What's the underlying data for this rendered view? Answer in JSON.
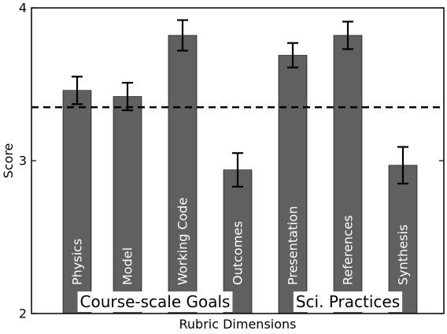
{
  "chart_data": {
    "type": "bar",
    "categories": [
      "Physics",
      "Model",
      "Working Code",
      "Outcomes",
      "Presentation",
      "References",
      "Synthesis"
    ],
    "values": [
      3.46,
      3.42,
      3.82,
      2.94,
      3.69,
      3.82,
      2.97
    ],
    "errors": [
      0.09,
      0.09,
      0.1,
      0.11,
      0.08,
      0.09,
      0.12
    ],
    "reference_line": 3.35,
    "xlabel": "Rubric Dimensions",
    "ylabel": "Score",
    "ylim": [
      2,
      4
    ],
    "yticks": [
      "2",
      "3",
      "4"
    ],
    "group_labels": [
      "Course-scale Goals",
      "Sci. Practices"
    ],
    "grid": false,
    "bar_color": "#606060",
    "error_color": "#000000",
    "reference_line_color": "#000000"
  }
}
